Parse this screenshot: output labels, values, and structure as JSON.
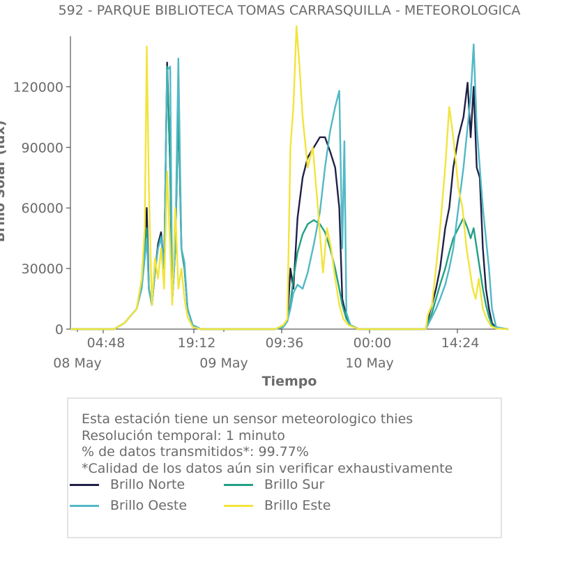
{
  "chart_data": {
    "type": "line",
    "title": "592 - PARQUE BIBLIOTECA TOMAS CARRASQUILLA - METEOROLOGICA",
    "xlabel": "Tiempo",
    "ylabel": "Brillo Solar (lux)",
    "ylim": [
      0,
      145000
    ],
    "yticks": [
      "0",
      "30000",
      "60000",
      "90000",
      "120000"
    ],
    "xtick_labels": [
      {
        "time": "04:48",
        "date": "08 May"
      },
      {
        "time": "19:12",
        "date": ""
      },
      {
        "time": "09:36",
        "date": "09 May"
      },
      {
        "time": "00:00",
        "date": ""
      },
      {
        "time": "14:24",
        "date": "10 May"
      }
    ],
    "xlim_hours": [
      -1.3,
      41.7
    ],
    "series": [
      {
        "name": "Brillo Norte",
        "color": "#1f2245",
        "points": [
          [
            -1.3,
            0
          ],
          [
            3.0,
            0
          ],
          [
            4.0,
            3000
          ],
          [
            5.2,
            10000
          ],
          [
            5.7,
            22000
          ],
          [
            6.2,
            60000
          ],
          [
            6.4,
            20000
          ],
          [
            6.7,
            12000
          ],
          [
            7.0,
            28000
          ],
          [
            7.3,
            42000
          ],
          [
            7.6,
            48000
          ],
          [
            7.9,
            30000
          ],
          [
            8.2,
            132000
          ],
          [
            8.5,
            80000
          ],
          [
            8.7,
            14000
          ],
          [
            9.0,
            40000
          ],
          [
            9.3,
            110000
          ],
          [
            9.6,
            40000
          ],
          [
            9.9,
            30000
          ],
          [
            10.2,
            10000
          ],
          [
            10.7,
            2000
          ],
          [
            11.5,
            0
          ],
          [
            18.8,
            0
          ],
          [
            19.6,
            1000
          ],
          [
            20.0,
            4000
          ],
          [
            20.3,
            30000
          ],
          [
            20.6,
            20000
          ],
          [
            21.0,
            55000
          ],
          [
            21.5,
            75000
          ],
          [
            22.0,
            85000
          ],
          [
            22.6,
            90000
          ],
          [
            23.2,
            95000
          ],
          [
            23.7,
            95000
          ],
          [
            24.2,
            88000
          ],
          [
            24.7,
            80000
          ],
          [
            25.1,
            60000
          ],
          [
            25.4,
            15000
          ],
          [
            25.8,
            6000
          ],
          [
            26.2,
            2000
          ],
          [
            27.0,
            0
          ],
          [
            33.6,
            0
          ],
          [
            33.8,
            5000
          ],
          [
            34.2,
            12000
          ],
          [
            34.6,
            20000
          ],
          [
            35.0,
            30000
          ],
          [
            35.5,
            50000
          ],
          [
            35.9,
            60000
          ],
          [
            36.3,
            80000
          ],
          [
            36.8,
            95000
          ],
          [
            37.3,
            105000
          ],
          [
            37.7,
            122000
          ],
          [
            38.0,
            95000
          ],
          [
            38.3,
            120000
          ],
          [
            38.6,
            80000
          ],
          [
            38.9,
            75000
          ],
          [
            39.2,
            40000
          ],
          [
            39.5,
            20000
          ],
          [
            39.8,
            10000
          ],
          [
            40.1,
            3000
          ],
          [
            40.5,
            500
          ],
          [
            41.7,
            0
          ]
        ]
      },
      {
        "name": "Brillo Sur",
        "color": "#22a085",
        "points": [
          [
            -1.3,
            0
          ],
          [
            3.0,
            0
          ],
          [
            4.0,
            3000
          ],
          [
            5.2,
            10000
          ],
          [
            5.7,
            22000
          ],
          [
            6.2,
            50000
          ],
          [
            6.4,
            20000
          ],
          [
            6.7,
            12000
          ],
          [
            7.0,
            28000
          ],
          [
            7.3,
            40000
          ],
          [
            7.6,
            46000
          ],
          [
            7.9,
            30000
          ],
          [
            8.2,
            130000
          ],
          [
            8.5,
            80000
          ],
          [
            8.7,
            14000
          ],
          [
            9.0,
            40000
          ],
          [
            9.3,
            110000
          ],
          [
            9.6,
            40000
          ],
          [
            9.9,
            30000
          ],
          [
            10.2,
            10000
          ],
          [
            10.7,
            2000
          ],
          [
            11.5,
            0
          ],
          [
            18.8,
            0
          ],
          [
            19.6,
            1000
          ],
          [
            20.0,
            4000
          ],
          [
            20.3,
            12000
          ],
          [
            20.6,
            25000
          ],
          [
            21.0,
            38000
          ],
          [
            21.5,
            47000
          ],
          [
            22.0,
            52000
          ],
          [
            22.6,
            54000
          ],
          [
            23.2,
            52000
          ],
          [
            23.7,
            48000
          ],
          [
            24.2,
            40000
          ],
          [
            24.7,
            30000
          ],
          [
            25.1,
            20000
          ],
          [
            25.4,
            12000
          ],
          [
            25.8,
            5000
          ],
          [
            26.2,
            2000
          ],
          [
            27.0,
            0
          ],
          [
            33.6,
            0
          ],
          [
            33.8,
            3000
          ],
          [
            34.2,
            8000
          ],
          [
            34.6,
            15000
          ],
          [
            35.0,
            22000
          ],
          [
            35.5,
            30000
          ],
          [
            35.9,
            38000
          ],
          [
            36.3,
            45000
          ],
          [
            36.8,
            50000
          ],
          [
            37.3,
            55000
          ],
          [
            37.7,
            50000
          ],
          [
            38.0,
            45000
          ],
          [
            38.3,
            50000
          ],
          [
            38.6,
            40000
          ],
          [
            38.9,
            30000
          ],
          [
            39.2,
            20000
          ],
          [
            39.5,
            12000
          ],
          [
            39.8,
            6000
          ],
          [
            40.1,
            2000
          ],
          [
            40.5,
            500
          ],
          [
            41.7,
            0
          ]
        ]
      },
      {
        "name": "Brillo Oeste",
        "color": "#52b8c6",
        "points": [
          [
            -1.3,
            0
          ],
          [
            3.0,
            0
          ],
          [
            4.0,
            3000
          ],
          [
            5.2,
            10000
          ],
          [
            5.7,
            20000
          ],
          [
            6.2,
            45000
          ],
          [
            6.4,
            20000
          ],
          [
            6.7,
            12000
          ],
          [
            7.0,
            28000
          ],
          [
            7.3,
            40000
          ],
          [
            7.6,
            45000
          ],
          [
            7.9,
            30000
          ],
          [
            8.2,
            128000
          ],
          [
            8.5,
            130000
          ],
          [
            8.7,
            14000
          ],
          [
            9.0,
            40000
          ],
          [
            9.3,
            134000
          ],
          [
            9.6,
            40000
          ],
          [
            9.9,
            33000
          ],
          [
            10.2,
            10000
          ],
          [
            10.7,
            2000
          ],
          [
            11.5,
            0
          ],
          [
            18.8,
            0
          ],
          [
            19.6,
            1000
          ],
          [
            20.0,
            4000
          ],
          [
            20.3,
            10000
          ],
          [
            20.6,
            18000
          ],
          [
            21.0,
            22000
          ],
          [
            21.5,
            20000
          ],
          [
            22.0,
            28000
          ],
          [
            22.6,
            42000
          ],
          [
            23.2,
            58000
          ],
          [
            23.7,
            80000
          ],
          [
            24.2,
            98000
          ],
          [
            24.7,
            110000
          ],
          [
            25.1,
            118000
          ],
          [
            25.4,
            40000
          ],
          [
            25.6,
            93000
          ],
          [
            25.8,
            8000
          ],
          [
            26.2,
            2000
          ],
          [
            27.0,
            0
          ],
          [
            33.6,
            0
          ],
          [
            33.8,
            2000
          ],
          [
            34.2,
            6000
          ],
          [
            34.6,
            10000
          ],
          [
            35.0,
            15000
          ],
          [
            35.5,
            22000
          ],
          [
            35.9,
            30000
          ],
          [
            36.3,
            40000
          ],
          [
            36.8,
            60000
          ],
          [
            37.3,
            80000
          ],
          [
            37.7,
            100000
          ],
          [
            38.0,
            115000
          ],
          [
            38.3,
            141000
          ],
          [
            38.6,
            100000
          ],
          [
            38.9,
            80000
          ],
          [
            39.2,
            60000
          ],
          [
            39.5,
            45000
          ],
          [
            39.8,
            30000
          ],
          [
            40.1,
            10000
          ],
          [
            40.5,
            1000
          ],
          [
            41.7,
            0
          ]
        ]
      },
      {
        "name": "Brillo Este",
        "color": "#f2e43b",
        "points": [
          [
            -1.3,
            0
          ],
          [
            3.0,
            0
          ],
          [
            4.0,
            3000
          ],
          [
            5.2,
            10000
          ],
          [
            5.7,
            25000
          ],
          [
            6.0,
            50000
          ],
          [
            6.2,
            140000
          ],
          [
            6.4,
            70000
          ],
          [
            6.7,
            12000
          ],
          [
            7.0,
            35000
          ],
          [
            7.3,
            25000
          ],
          [
            7.6,
            40000
          ],
          [
            7.9,
            20000
          ],
          [
            8.2,
            78000
          ],
          [
            8.5,
            40000
          ],
          [
            8.7,
            12000
          ],
          [
            9.0,
            60000
          ],
          [
            9.3,
            20000
          ],
          [
            9.6,
            30000
          ],
          [
            9.9,
            15000
          ],
          [
            10.2,
            6000
          ],
          [
            10.7,
            1000
          ],
          [
            11.5,
            0
          ],
          [
            18.8,
            0
          ],
          [
            19.6,
            2000
          ],
          [
            20.0,
            5000
          ],
          [
            20.3,
            90000
          ],
          [
            20.6,
            110000
          ],
          [
            20.9,
            150000
          ],
          [
            21.2,
            130000
          ],
          [
            21.5,
            105000
          ],
          [
            22.0,
            80000
          ],
          [
            22.5,
            90000
          ],
          [
            23.0,
            60000
          ],
          [
            23.5,
            28000
          ],
          [
            23.9,
            50000
          ],
          [
            24.3,
            40000
          ],
          [
            24.7,
            25000
          ],
          [
            25.1,
            12000
          ],
          [
            25.5,
            5000
          ],
          [
            26.0,
            2000
          ],
          [
            27.0,
            0
          ],
          [
            33.6,
            0
          ],
          [
            33.8,
            7000
          ],
          [
            34.2,
            12000
          ],
          [
            34.6,
            30000
          ],
          [
            35.0,
            50000
          ],
          [
            35.5,
            80000
          ],
          [
            35.9,
            110000
          ],
          [
            36.3,
            95000
          ],
          [
            36.8,
            70000
          ],
          [
            37.2,
            60000
          ],
          [
            37.6,
            40000
          ],
          [
            37.9,
            30000
          ],
          [
            38.2,
            20000
          ],
          [
            38.5,
            15000
          ],
          [
            38.8,
            25000
          ],
          [
            39.2,
            10000
          ],
          [
            39.6,
            5000
          ],
          [
            40.0,
            1500
          ],
          [
            40.5,
            300
          ],
          [
            41.7,
            0
          ]
        ]
      }
    ],
    "grid": false,
    "legend_placement": "bottom"
  },
  "info": {
    "lines": [
      "Esta estación tiene un sensor meteorologico thies",
      "Resolución temporal: 1 minuto",
      "% de datos transmitidos*: 99.77%",
      "*Calidad de los datos aún sin verificar exhaustivamente"
    ]
  }
}
